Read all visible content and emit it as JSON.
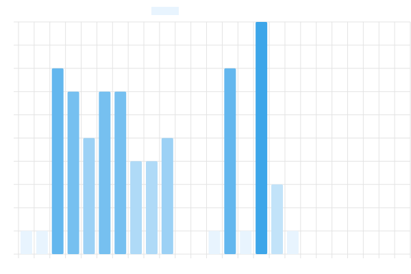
{
  "chart_data": {
    "type": "bar",
    "title": "",
    "xlabel": "",
    "ylabel": "",
    "categories": [
      "",
      "",
      "",
      "",
      "",
      "",
      "",
      "",
      "",
      "",
      "",
      "",
      "",
      "",
      "",
      "",
      "",
      "",
      "",
      "",
      "",
      "",
      "",
      "",
      ""
    ],
    "values": [
      1,
      1,
      8,
      7,
      5,
      7,
      7,
      4,
      4,
      5,
      0,
      0,
      1,
      8,
      1,
      10,
      3,
      1,
      0,
      0,
      0,
      0,
      0,
      0,
      0
    ],
    "ylim": [
      0,
      10
    ],
    "grid": true,
    "legend": {
      "placement": "top-center",
      "entries": [
        ""
      ]
    },
    "colors": {
      "grid": "#e3e3e3",
      "bar_max": "#3da6e9",
      "bar_min": "#e8f4fe"
    }
  }
}
